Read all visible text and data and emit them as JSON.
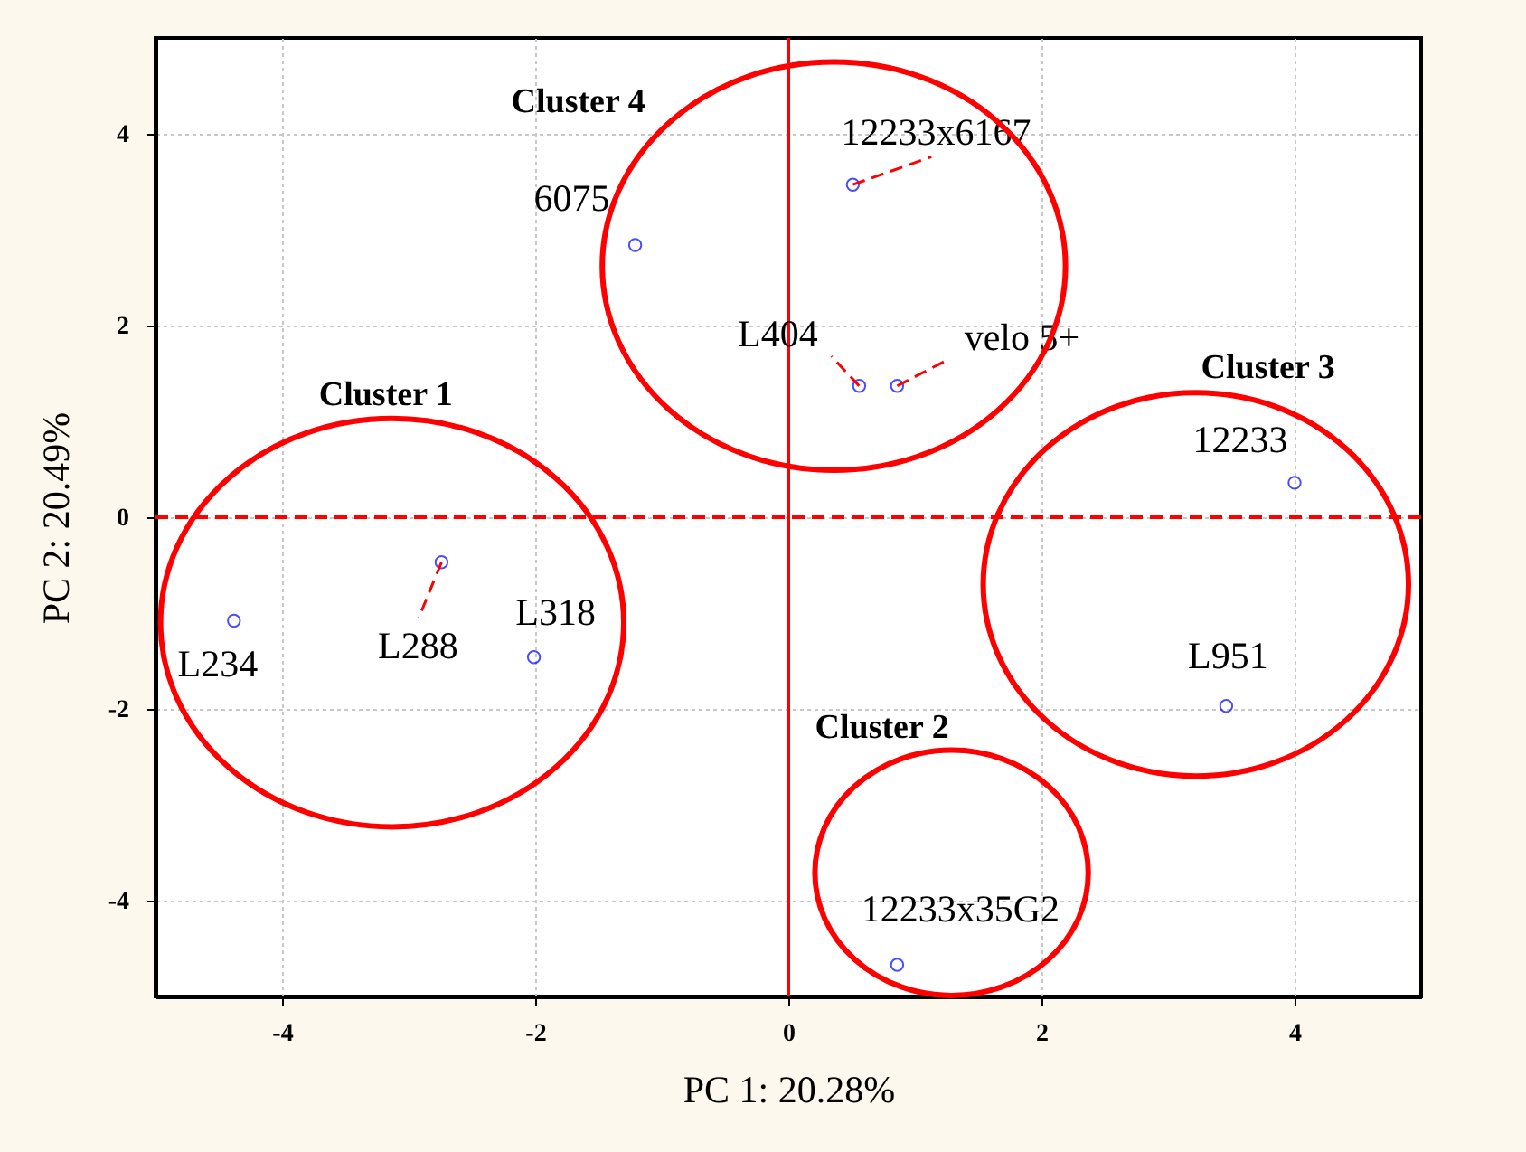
{
  "chart_data": {
    "type": "scatter",
    "xlabel": "PC 1: 20.28%",
    "ylabel": "PC 2: 20.49%",
    "xlim": [
      -5,
      5
    ],
    "ylim": [
      -5,
      5
    ],
    "xticks": [
      -4,
      -2,
      0,
      2,
      4
    ],
    "yticks": [
      -4,
      -2,
      0,
      2,
      4
    ],
    "grid": true,
    "series": [
      {
        "type": "scatter",
        "marker": "circle",
        "color": "#0000ff",
        "x": [
          -1.21,
          0.51,
          0.56,
          0.86,
          4.0,
          3.46,
          0.86,
          -4.38,
          -2.74,
          -2.01
        ],
        "values": [
          2.84,
          3.47,
          1.37,
          1.37,
          0.36,
          -1.97,
          -4.67,
          -1.08,
          -0.47,
          -1.46
        ]
      },
      {
        "type": "line",
        "color": "#ff0000",
        "line_style": "dashed",
        "x": [
          0.51,
          1.13
        ],
        "values": [
          3.47,
          3.76
        ]
      },
      {
        "type": "line",
        "color": "#ff0000",
        "line_style": "dashed",
        "x": [
          0.56,
          0.34
        ],
        "values": [
          1.37,
          1.68
        ]
      },
      {
        "type": "line",
        "color": "#ff0000",
        "line_style": "dashed",
        "x": [
          0.86,
          1.24
        ],
        "values": [
          1.37,
          1.63
        ]
      },
      {
        "type": "line",
        "color": "#ff0000",
        "line_style": "dashed",
        "x": [
          -2.74,
          -2.92
        ],
        "values": [
          -0.47,
          -1.05
        ]
      }
    ],
    "ref_lines": [
      {
        "axis": "y",
        "value": 0,
        "color": "#ff0000",
        "line_style": "dashed"
      },
      {
        "axis": "x",
        "value": 0,
        "color": "#ff0000",
        "line_style": "solid"
      }
    ],
    "annotations": [
      "Cluster 4",
      {
        "text": "6075",
        "x": -1.21,
        "y": 2.84
      },
      {
        "text": "12233x6167",
        "x": 0.51,
        "y": 3.47
      },
      {
        "text": "L404",
        "x": 0.56,
        "y": 1.37
      },
      {
        "text": "velo 5+",
        "x": 0.86,
        "y": 1.37
      },
      "Cluster 3",
      {
        "text": "12233",
        "x": 4.0,
        "y": 0.36
      },
      "Cluster 1",
      {
        "text": "L318",
        "x": -2.01,
        "y": -1.46
      },
      {
        "text": "L288",
        "x": -2.74,
        "y": -0.47
      },
      {
        "text": "L234",
        "x": -4.38,
        "y": -1.08
      },
      {
        "text": "L951",
        "x": 3.46,
        "y": -1.97
      },
      "Cluster 2",
      {
        "text": "12233x35G2",
        "x": 0.86,
        "y": -4.67
      }
    ]
  }
}
